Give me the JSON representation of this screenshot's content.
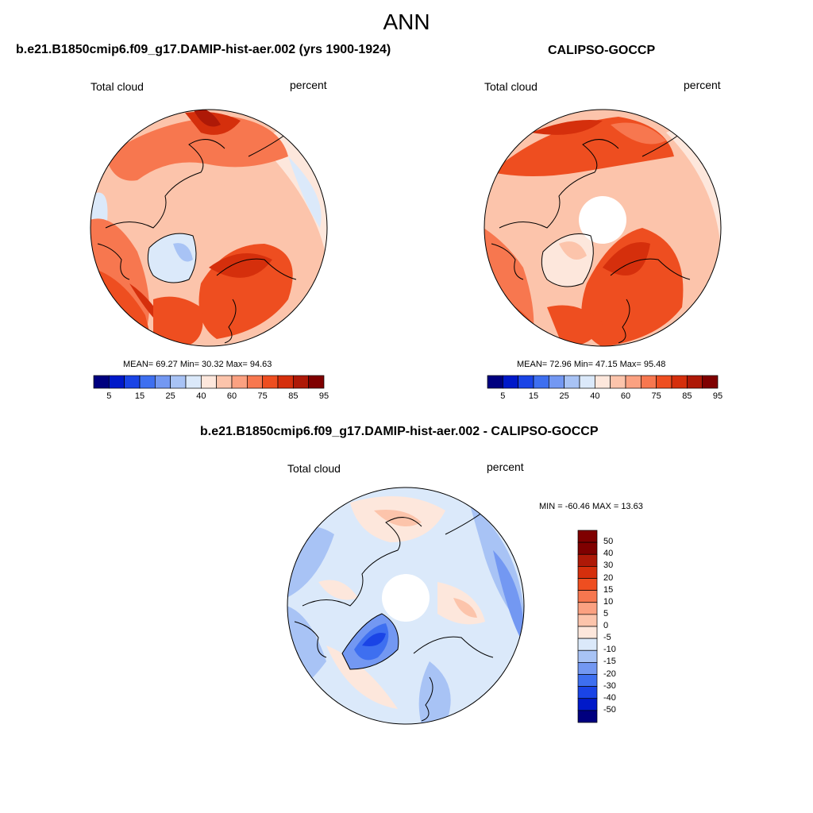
{
  "page": {
    "title": "ANN"
  },
  "panels": [
    {
      "title": "b.e21.B1850cmip6.f09_g17.DAMIP-hist-aer.002 (yrs 1900-1924)",
      "variable": "Total cloud",
      "units": "percent",
      "stats": "MEAN=  69.27  Min=  30.32  Max=  94.63",
      "mean": 69.27,
      "min": 30.32,
      "max": 94.63
    },
    {
      "title": "CALIPSO-GOCCP",
      "variable": "Total cloud",
      "units": "percent",
      "stats": "MEAN=  72.96  Min=  47.15  Max=  95.48",
      "mean": 72.96,
      "min": 47.15,
      "max": 95.48
    },
    {
      "title": "b.e21.B1850cmip6.f09_g17.DAMIP-hist-aer.002 - CALIPSO-GOCCP",
      "variable": "Total cloud",
      "units": "percent",
      "stats": "MIN = -60.46 MAX =  13.63",
      "min": -60.46,
      "max": 13.63
    }
  ],
  "colorbar_abs": {
    "tick_labels": [
      "5",
      "15",
      "25",
      "40",
      "60",
      "75",
      "85",
      "95"
    ],
    "colors": [
      "#00007f",
      "#0019c9",
      "#1a44e6",
      "#3e6ff0",
      "#7398f2",
      "#a8c3f5",
      "#dbe9fa",
      "#fde7dc",
      "#fcc4ab",
      "#fba181",
      "#f7774f",
      "#ee4e20",
      "#d52f0c",
      "#ae1907",
      "#7f0000"
    ]
  },
  "colorbar_diff": {
    "tick_labels": [
      "50",
      "40",
      "30",
      "20",
      "15",
      "10",
      "5",
      "0",
      "-5",
      "-10",
      "-15",
      "-20",
      "-30",
      "-40",
      "-50"
    ],
    "colors": [
      "#7f0000",
      "#ae1907",
      "#d52f0c",
      "#ee4e20",
      "#f7774f",
      "#fba181",
      "#fcc4ab",
      "#fde7dc",
      "#dbe9fa",
      "#a8c3f5",
      "#7398f2",
      "#3e6ff0",
      "#1a44e6",
      "#0019c9",
      "#00007f"
    ]
  }
}
